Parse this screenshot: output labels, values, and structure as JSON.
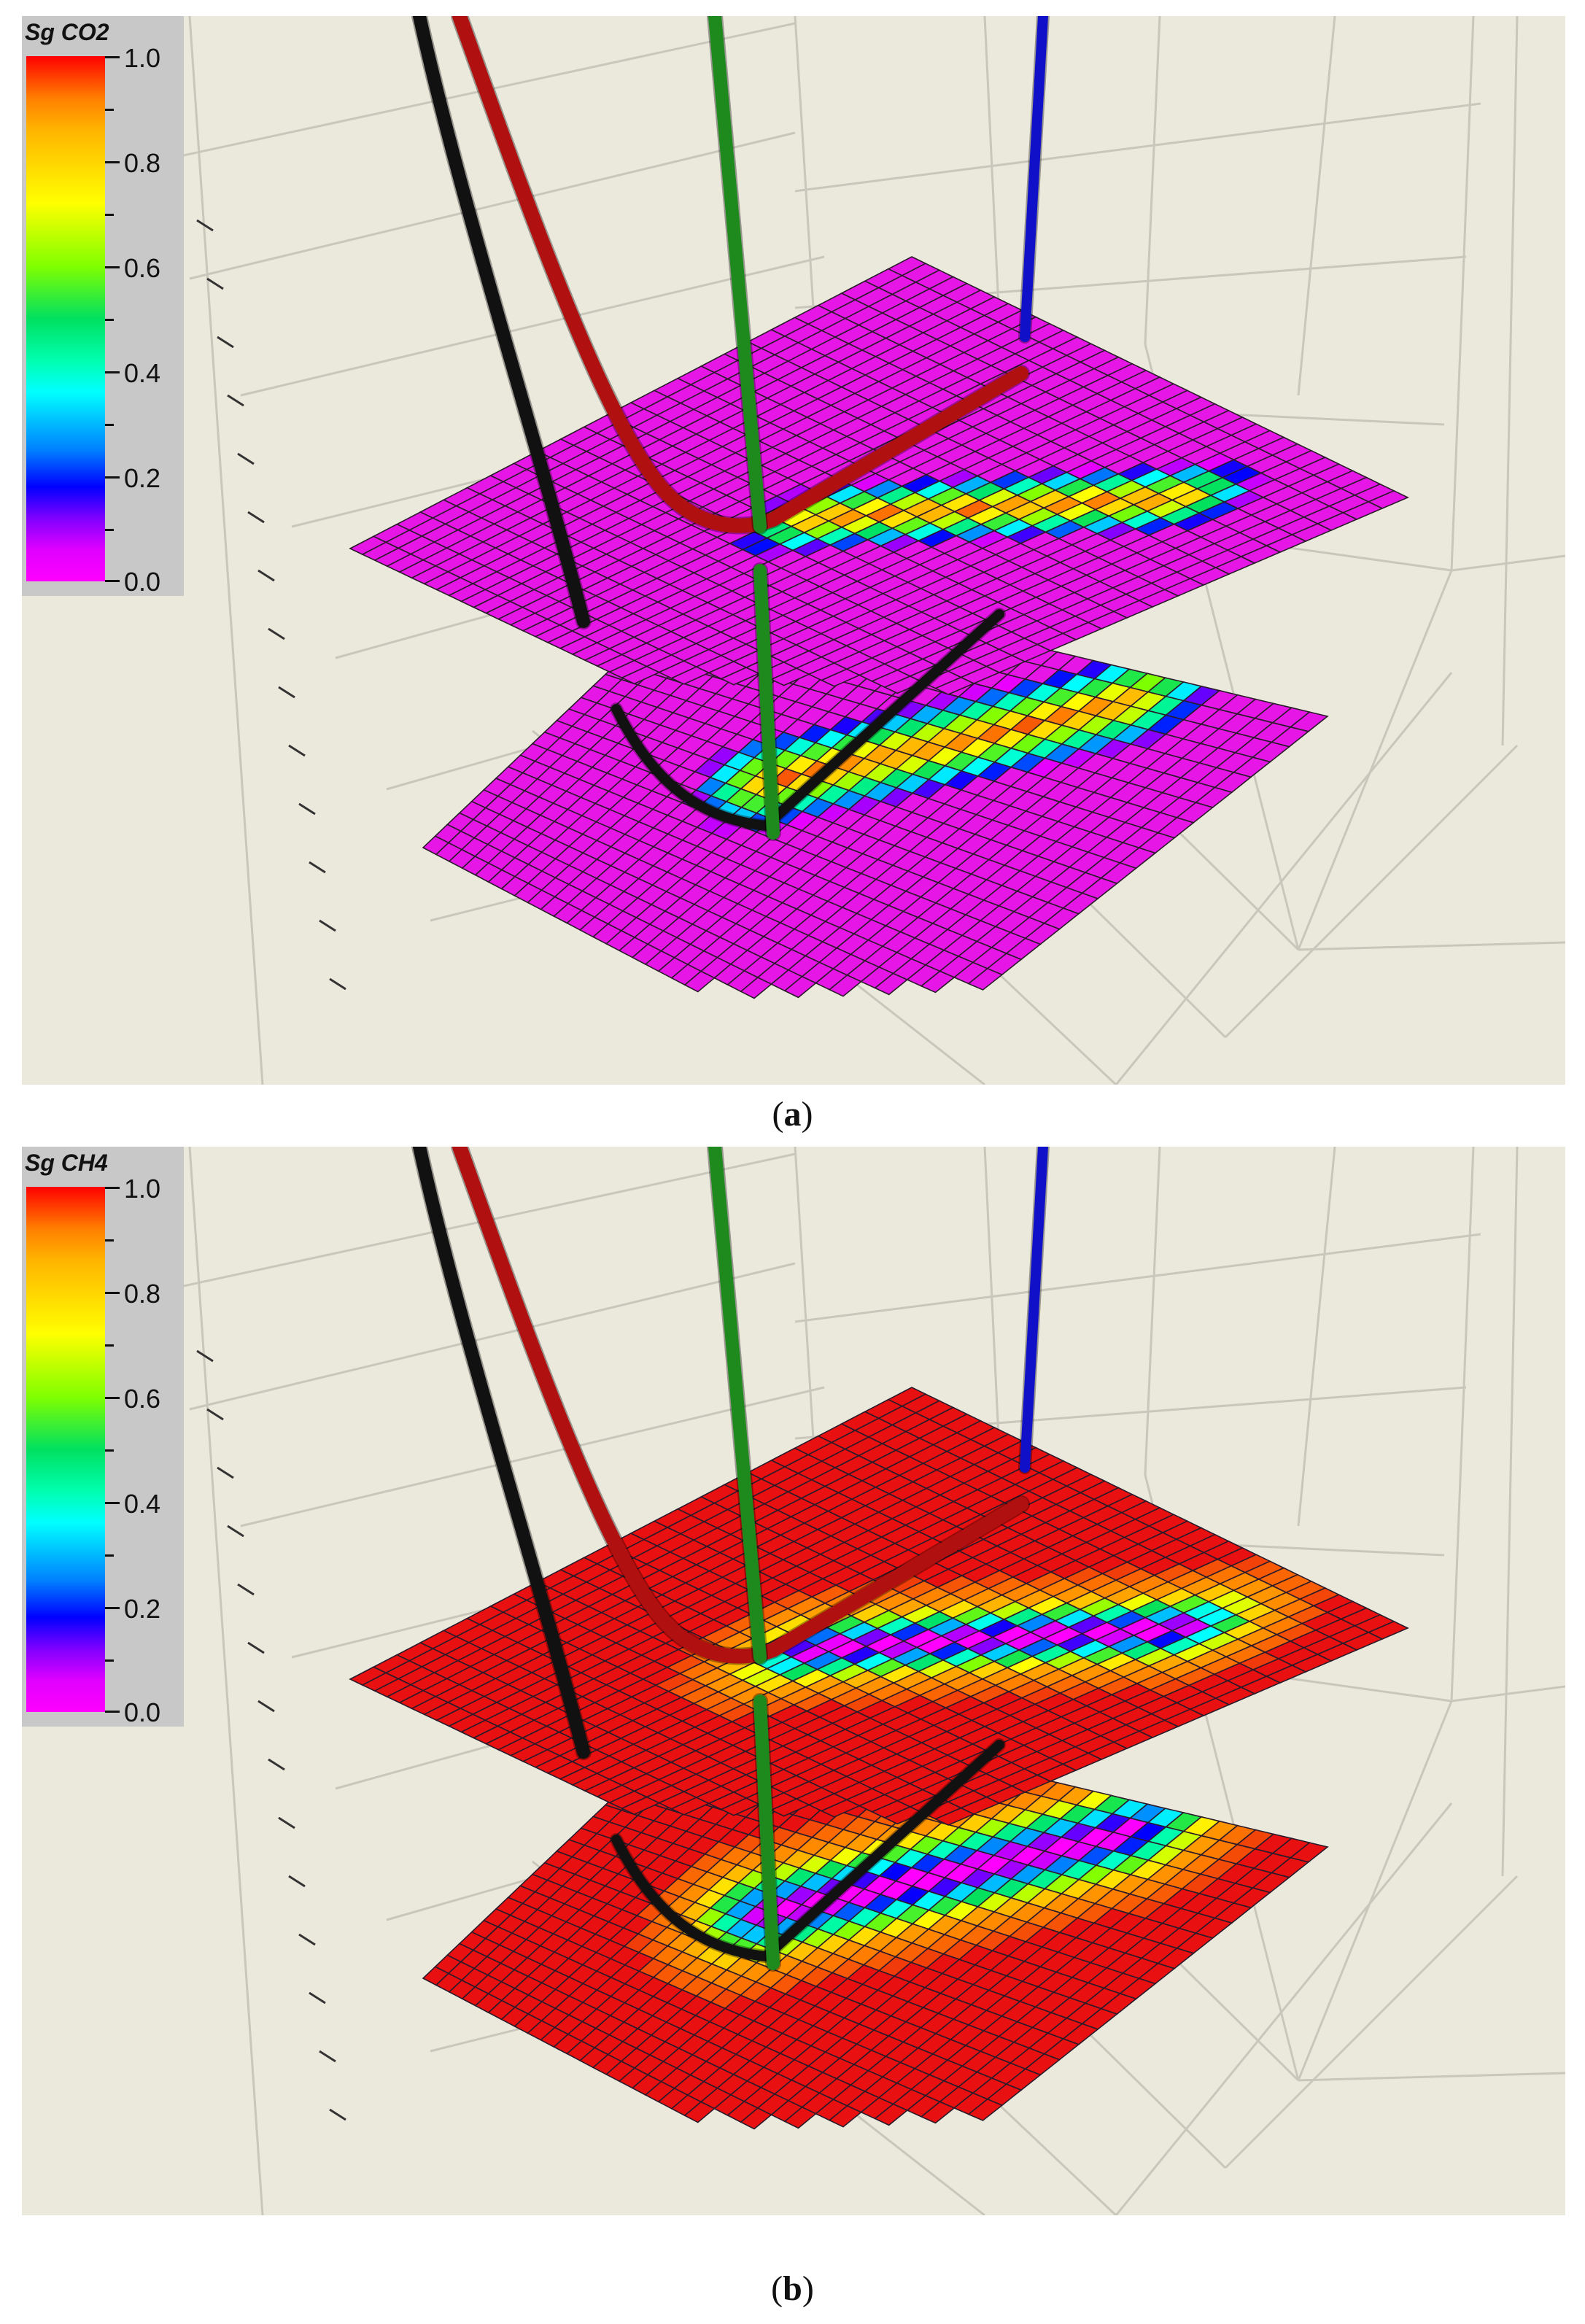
{
  "panels": [
    {
      "id": "a",
      "legend_title": "Sg CO2",
      "legend_ticks": [
        "1.0",
        "0.8",
        "0.6",
        "0.4",
        "0.2",
        "0.0"
      ],
      "caption_letter": "a",
      "surface_base_color": "#e617e6",
      "well_colors": {
        "black": "#111111",
        "red": "#b01010",
        "green": "#1e8a1e",
        "blue": "#1010c8"
      }
    },
    {
      "id": "b",
      "legend_title": "Sg CH4",
      "legend_ticks": [
        "1.0",
        "0.8",
        "0.6",
        "0.4",
        "0.2",
        "0.0"
      ],
      "caption_letter": "b",
      "surface_base_color": "#e81010",
      "well_colors": {
        "black": "#111111",
        "red": "#b01010",
        "green": "#1e8a1e",
        "blue": "#1010c8"
      }
    }
  ],
  "colors": {
    "background": "#ebe8dc",
    "grid": "#c9c6bb",
    "legend_bg": "#c8c8c8"
  }
}
